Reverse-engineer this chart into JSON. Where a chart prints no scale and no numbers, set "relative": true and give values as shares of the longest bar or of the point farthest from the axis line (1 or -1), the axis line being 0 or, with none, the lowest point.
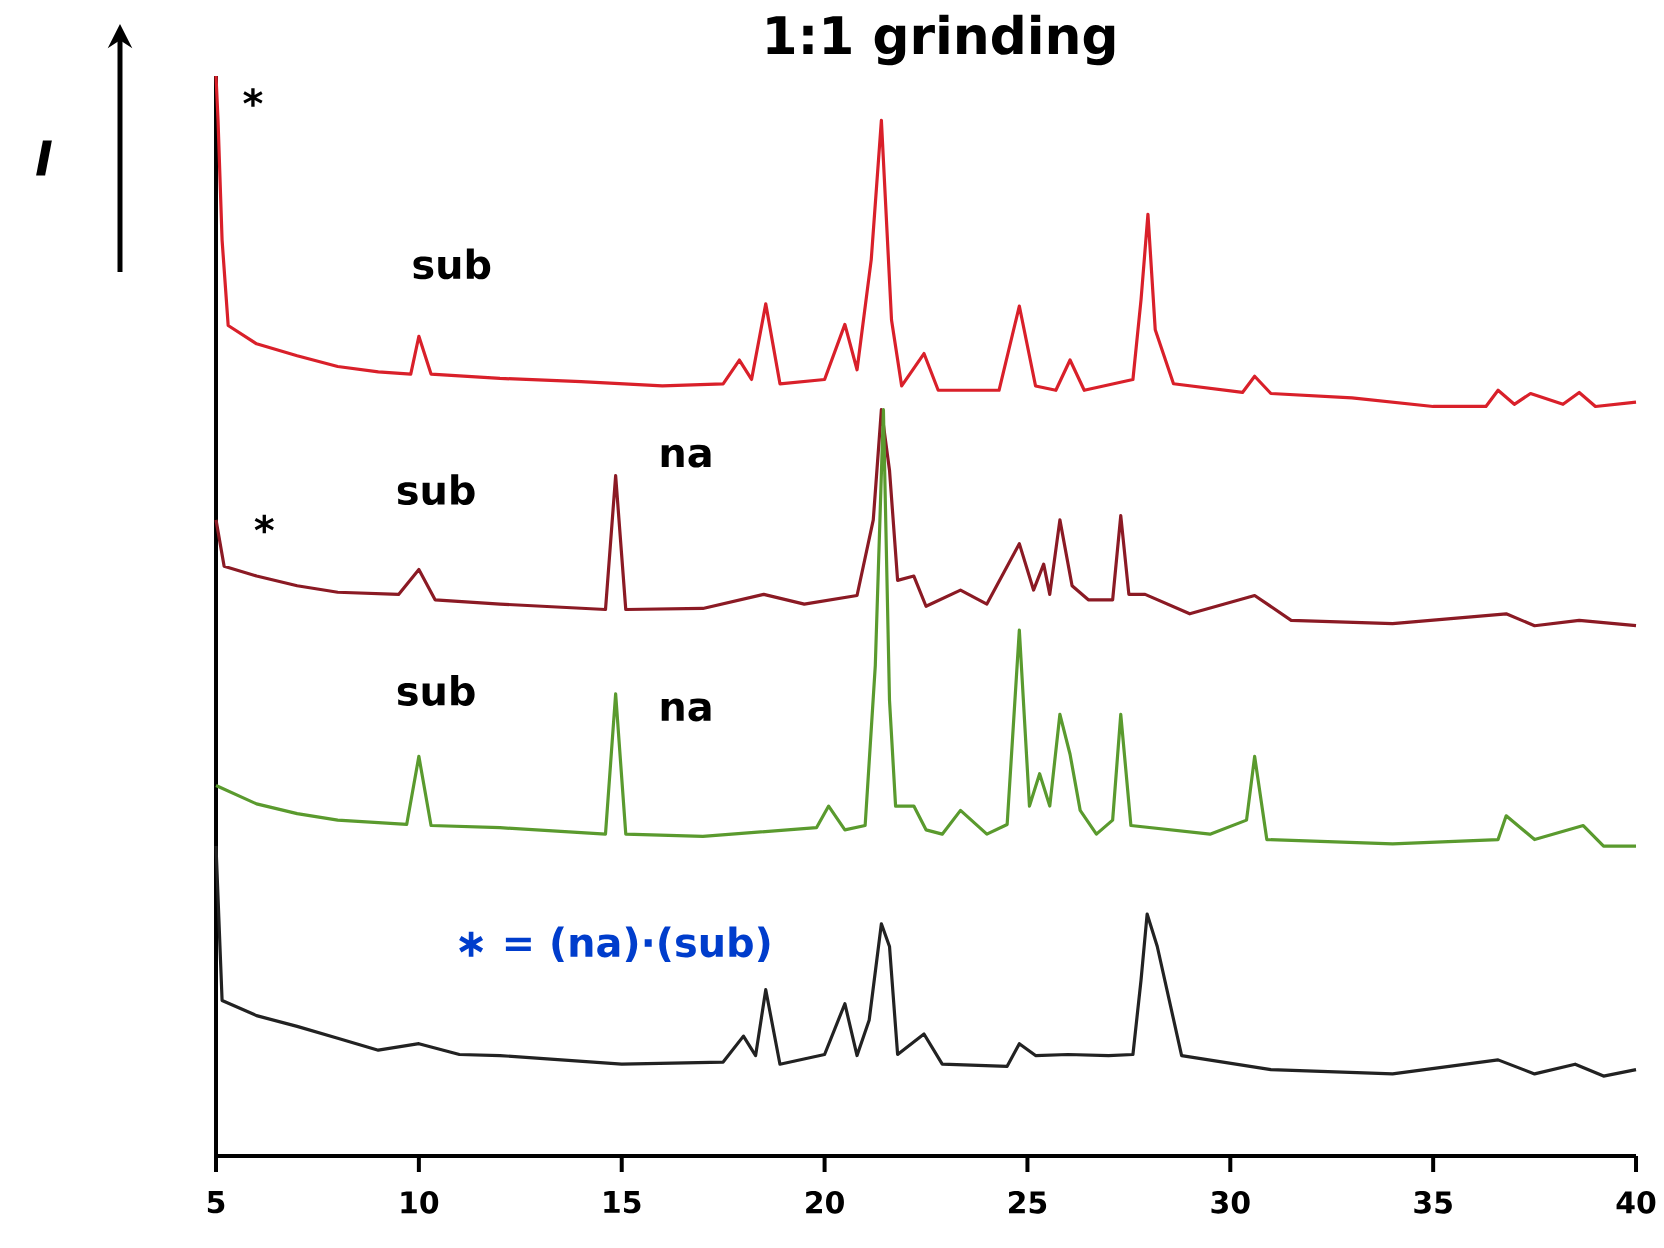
{
  "chart_data": {
    "type": "line",
    "title": "1:1 grinding",
    "ylabel": "I",
    "relative": true,
    "xlim": [
      5,
      40
    ],
    "xticks": [
      5,
      10,
      15,
      20,
      25,
      30,
      35,
      40
    ],
    "grid": false,
    "marker": "none",
    "line_style": "solid",
    "series": [
      {
        "color": "#d9202a",
        "x": [
          5.0,
          5.05,
          5.15,
          5.3,
          6,
          7,
          8,
          9,
          9.8,
          10.0,
          10.3,
          12,
          14,
          16,
          17.5,
          17.9,
          18.2,
          18.55,
          18.9,
          20.0,
          20.5,
          20.8,
          21.15,
          21.4,
          21.65,
          21.9,
          22.45,
          22.8,
          24.3,
          24.8,
          25.2,
          25.7,
          26.05,
          26.4,
          27.6,
          27.8,
          27.97,
          28.15,
          28.6,
          30.3,
          30.6,
          31,
          33,
          35,
          36.3,
          36.6,
          37,
          37.4,
          38.2,
          38.6,
          39,
          40
        ],
        "values": [
          1.0,
          0.959,
          0.848,
          0.769,
          0.752,
          0.741,
          0.731,
          0.726,
          0.724,
          0.759,
          0.724,
          0.72,
          0.717,
          0.713,
          0.715,
          0.737,
          0.719,
          0.789,
          0.715,
          0.719,
          0.77,
          0.728,
          0.83,
          0.959,
          0.774,
          0.713,
          0.743,
          0.709,
          0.709,
          0.787,
          0.713,
          0.709,
          0.737,
          0.709,
          0.719,
          0.793,
          0.872,
          0.765,
          0.715,
          0.707,
          0.722,
          0.706,
          0.702,
          0.694,
          0.694,
          0.709,
          0.696,
          0.706,
          0.696,
          0.707,
          0.694,
          0.698
        ]
      },
      {
        "color": "#8b1a24",
        "x": [
          5.0,
          5.2,
          6,
          7,
          8,
          9.5,
          10.0,
          10.4,
          12,
          14.6,
          14.85,
          15.1,
          17,
          18.5,
          19.5,
          20.8,
          21.2,
          21.4,
          21.6,
          21.8,
          22.2,
          22.5,
          23.35,
          24,
          24.8,
          25.15,
          25.4,
          25.55,
          25.8,
          26.1,
          26.5,
          27.1,
          27.3,
          27.5,
          27.9,
          29,
          30.6,
          31.5,
          34,
          36.8,
          37.5,
          38.6,
          40
        ],
        "values": [
          0.589,
          0.546,
          0.537,
          0.528,
          0.522,
          0.52,
          0.543,
          0.515,
          0.511,
          0.506,
          0.63,
          0.506,
          0.507,
          0.52,
          0.511,
          0.519,
          0.589,
          0.691,
          0.635,
          0.533,
          0.537,
          0.509,
          0.524,
          0.511,
          0.567,
          0.524,
          0.548,
          0.52,
          0.589,
          0.528,
          0.515,
          0.515,
          0.593,
          0.52,
          0.52,
          0.502,
          0.519,
          0.496,
          0.493,
          0.502,
          0.491,
          0.496,
          0.491
        ]
      },
      {
        "color": "#5a9a2e",
        "x": [
          5.0,
          6,
          7,
          8,
          9.7,
          10.0,
          10.3,
          12,
          14.6,
          14.85,
          15.1,
          17,
          19.8,
          20.1,
          20.5,
          21.0,
          21.25,
          21.45,
          21.6,
          21.75,
          22.2,
          22.5,
          22.9,
          23.35,
          24,
          24.5,
          24.8,
          25.05,
          25.3,
          25.55,
          25.8,
          26.05,
          26.3,
          26.7,
          27.1,
          27.3,
          27.55,
          29.5,
          30.4,
          30.6,
          30.9,
          34,
          36.6,
          36.8,
          37.5,
          38.7,
          39.2,
          40
        ],
        "values": [
          0.343,
          0.326,
          0.317,
          0.311,
          0.307,
          0.37,
          0.306,
          0.304,
          0.298,
          0.428,
          0.298,
          0.296,
          0.304,
          0.324,
          0.302,
          0.306,
          0.454,
          0.691,
          0.422,
          0.324,
          0.324,
          0.302,
          0.298,
          0.32,
          0.298,
          0.307,
          0.487,
          0.324,
          0.354,
          0.324,
          0.409,
          0.372,
          0.32,
          0.298,
          0.311,
          0.409,
          0.306,
          0.298,
          0.311,
          0.37,
          0.293,
          0.289,
          0.293,
          0.315,
          0.293,
          0.306,
          0.287,
          0.287
        ]
      },
      {
        "color": "#222222",
        "x": [
          5.0,
          5.15,
          6,
          7,
          8,
          9,
          10,
          11,
          12,
          15,
          17.5,
          18.0,
          18.3,
          18.55,
          18.9,
          20.0,
          20.5,
          20.8,
          21.1,
          21.4,
          21.6,
          21.8,
          22.45,
          22.9,
          24.5,
          24.8,
          25.2,
          26.0,
          27.0,
          27.6,
          27.8,
          27.95,
          28.2,
          28.8,
          31,
          34,
          36.6,
          37.5,
          38.5,
          39.2,
          40
        ],
        "values": [
          0.287,
          0.144,
          0.13,
          0.12,
          0.109,
          0.098,
          0.104,
          0.094,
          0.093,
          0.085,
          0.087,
          0.111,
          0.093,
          0.154,
          0.085,
          0.094,
          0.141,
          0.093,
          0.126,
          0.215,
          0.194,
          0.094,
          0.113,
          0.085,
          0.083,
          0.104,
          0.093,
          0.094,
          0.093,
          0.094,
          0.163,
          0.224,
          0.194,
          0.093,
          0.08,
          0.076,
          0.089,
          0.076,
          0.085,
          0.074,
          0.08
        ]
      }
    ],
    "annotations": [
      "*",
      "sub",
      "*",
      "sub",
      "na",
      "sub",
      "na",
      "∗ = (**na**)·(**sub**)"
    ]
  }
}
